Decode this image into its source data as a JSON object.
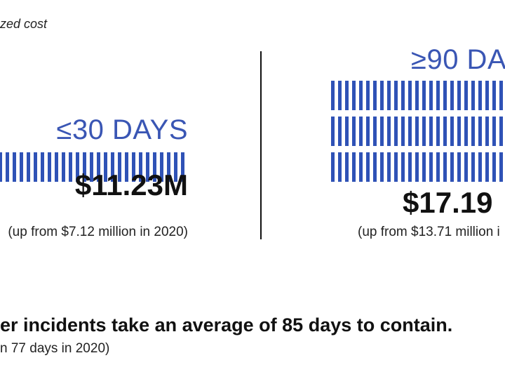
{
  "subtitle": "zed cost",
  "chart_data": {
    "type": "pictogram-bar",
    "colors": {
      "bar": "#2f52b6",
      "label": "#3a56b4"
    },
    "items": [
      {
        "label": "≤30 DAYS",
        "value": "$11.23M",
        "note": "(up from $7.12 million in 2020)"
      },
      {
        "label": "≥90 DA",
        "value": "$17.19",
        "note": "(up from $13.71 million i"
      }
    ]
  },
  "footer": {
    "headline": "er incidents take an average of 85 days to contain.",
    "note": "n 77 days in 2020)"
  }
}
